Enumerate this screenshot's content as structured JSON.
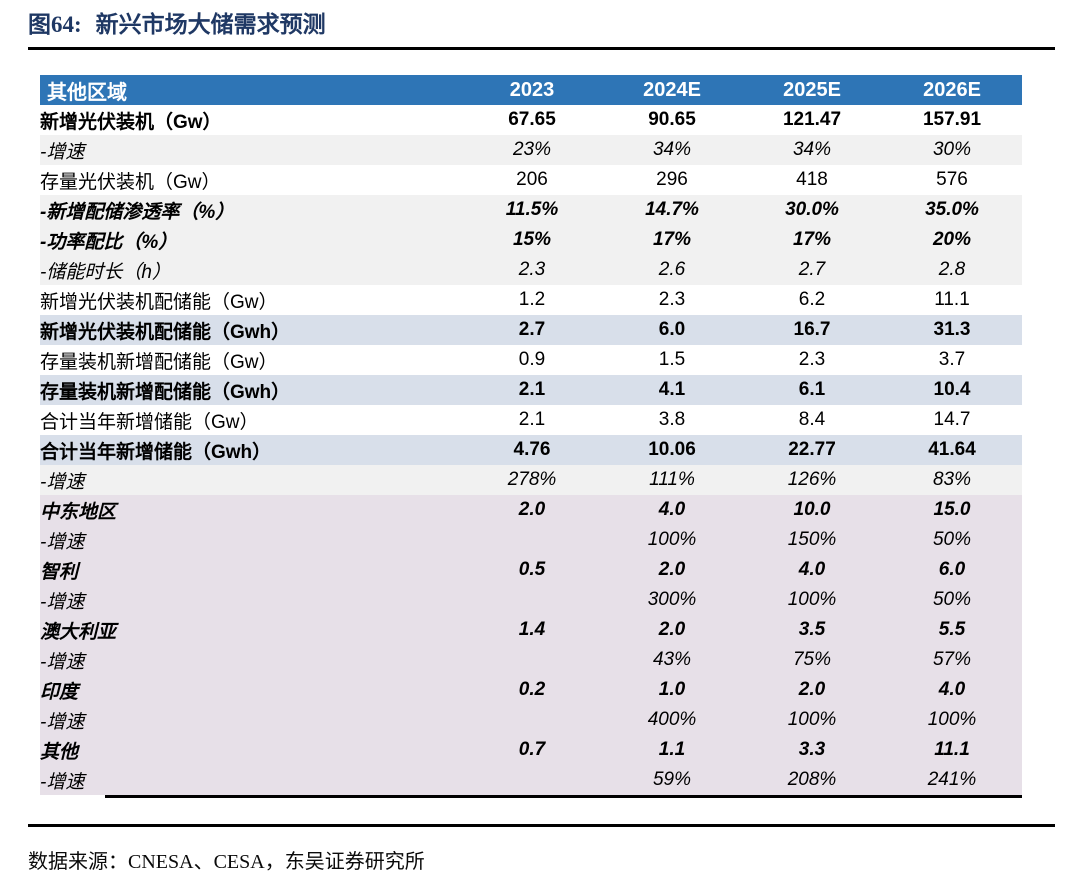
{
  "title": {
    "number": "图64:",
    "text": "新兴市场大储需求预测"
  },
  "colors": {
    "title_navy": "#1F3864",
    "header_blue": "#2E75B6",
    "row_gray": "#F1F1F1",
    "row_blue": "#D8DFEA",
    "row_pink": "#E7E0E8",
    "rule_black": "#000000"
  },
  "table": {
    "header": {
      "label": "其他区域",
      "columns": [
        "2023",
        "2024E",
        "2025E",
        "2026E"
      ]
    },
    "rows": [
      {
        "label": "新增光伏装机（Gw）",
        "values": [
          "67.65",
          "90.65",
          "121.47",
          "157.91"
        ],
        "style": "bold",
        "bg": "white"
      },
      {
        "label": "-增速",
        "values": [
          "23%",
          "34%",
          "34%",
          "30%"
        ],
        "style": "italic",
        "bg": "gray"
      },
      {
        "label": "存量光伏装机（Gw）",
        "values": [
          "206",
          "296",
          "418",
          "576"
        ],
        "style": "normal",
        "bg": "white"
      },
      {
        "label": "-新增配储渗透率（%）",
        "values": [
          "11.5%",
          "14.7%",
          "30.0%",
          "35.0%"
        ],
        "style": "bold-italic",
        "bg": "gray"
      },
      {
        "label": "-功率配比（%）",
        "values": [
          "15%",
          "17%",
          "17%",
          "20%"
        ],
        "style": "bold-italic",
        "bg": "gray"
      },
      {
        "label": "-储能时长（h）",
        "values": [
          "2.3",
          "2.6",
          "2.7",
          "2.8"
        ],
        "style": "italic",
        "bg": "gray"
      },
      {
        "label": "新增光伏装机配储能（Gw）",
        "values": [
          "1.2",
          "2.3",
          "6.2",
          "11.1"
        ],
        "style": "normal",
        "bg": "white"
      },
      {
        "label": "新增光伏装机配储能（Gwh）",
        "values": [
          "2.7",
          "6.0",
          "16.7",
          "31.3"
        ],
        "style": "bold",
        "bg": "blue"
      },
      {
        "label": "存量装机新增配储能（Gw）",
        "values": [
          "0.9",
          "1.5",
          "2.3",
          "3.7"
        ],
        "style": "normal",
        "bg": "white"
      },
      {
        "label": "存量装机新增配储能（Gwh）",
        "values": [
          "2.1",
          "4.1",
          "6.1",
          "10.4"
        ],
        "style": "bold",
        "bg": "blue"
      },
      {
        "label": "合计当年新增储能（Gw）",
        "values": [
          "2.1",
          "3.8",
          "8.4",
          "14.7"
        ],
        "style": "normal",
        "bg": "white"
      },
      {
        "label": "合计当年新增储能（Gwh）",
        "values": [
          "4.76",
          "10.06",
          "22.77",
          "41.64"
        ],
        "style": "bold",
        "bg": "blue"
      },
      {
        "label": "-增速",
        "values": [
          "278%",
          "111%",
          "126%",
          "83%"
        ],
        "style": "italic",
        "bg": "gray"
      },
      {
        "label": "中东地区",
        "values": [
          "2.0",
          "4.0",
          "10.0",
          "15.0"
        ],
        "style": "bold-italic",
        "bg": "pink"
      },
      {
        "label": "-增速",
        "values": [
          "",
          "100%",
          "150%",
          "50%"
        ],
        "style": "italic",
        "bg": "pink"
      },
      {
        "label": "智利",
        "values": [
          "0.5",
          "2.0",
          "4.0",
          "6.0"
        ],
        "style": "bold-italic",
        "bg": "pink"
      },
      {
        "label": "-增速",
        "values": [
          "",
          "300%",
          "100%",
          "50%"
        ],
        "style": "italic",
        "bg": "pink"
      },
      {
        "label": "澳大利亚",
        "values": [
          "1.4",
          "2.0",
          "3.5",
          "5.5"
        ],
        "style": "bold-italic",
        "bg": "pink"
      },
      {
        "label": "-增速",
        "values": [
          "",
          "43%",
          "75%",
          "57%"
        ],
        "style": "italic",
        "bg": "pink"
      },
      {
        "label": "印度",
        "values": [
          "0.2",
          "1.0",
          "2.0",
          "4.0"
        ],
        "style": "bold-italic",
        "bg": "pink"
      },
      {
        "label": "-增速",
        "values": [
          "",
          "400%",
          "100%",
          "100%"
        ],
        "style": "italic",
        "bg": "pink"
      },
      {
        "label": "其他",
        "values": [
          "0.7",
          "1.1",
          "3.3",
          "11.1"
        ],
        "style": "bold-italic",
        "bg": "pink"
      },
      {
        "label": "-增速",
        "values": [
          "",
          "59%",
          "208%",
          "241%"
        ],
        "style": "italic",
        "bg": "pink"
      }
    ]
  },
  "footer": {
    "source": "数据来源：CNESA、CESA，东吴证券研究所"
  }
}
